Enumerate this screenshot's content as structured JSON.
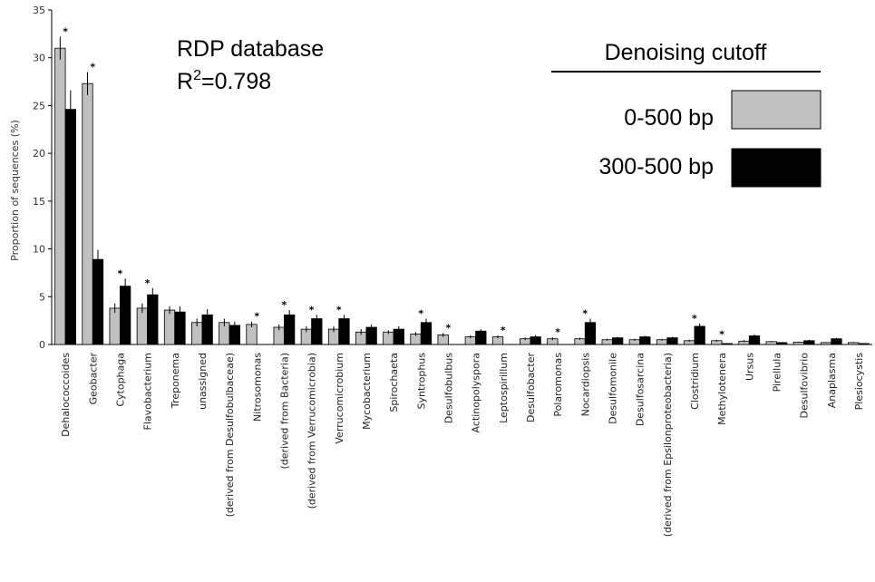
{
  "chart_data": {
    "type": "bar",
    "ylabel": "Proportion of sequences (%)",
    "ylim": [
      0,
      35
    ],
    "yticks": [
      0,
      5,
      10,
      15,
      20,
      25,
      30,
      35
    ],
    "annotation": {
      "line1": "RDP database",
      "line2_prefix": "R",
      "line2_sup": "2",
      "line2_suffix": "=0.798"
    },
    "legend": {
      "title": "Denoising cutoff",
      "placement": "top-right"
    },
    "significance_marker": "*",
    "categories": [
      "Dehalococcoides",
      "Geobacter",
      "Cytophaga",
      "Flavobacterium",
      "Treponema",
      "unassigned",
      "(derived from Desulfobulbaceae)",
      "Nitrosomonas",
      "(derived from Bacteria)",
      "(derived from Verrucomicrobia)",
      "Verrucomicrobium",
      "Mycobacterium",
      "Spirochaeta",
      "Syntrophus",
      "Desulfobulbus",
      "Actinopolyspora",
      "Leptospirillum",
      "Desulfobacter",
      "Polaromonas",
      "Nocardiopsis",
      "Desulfomonile",
      "Desulfosarcina",
      "(derived from Epsilonproteobacteria)",
      "Clostridium",
      "Methylotenera",
      "Ursus",
      "Pirellula",
      "Desulfovibrio",
      "Anaplasma",
      "Plesiocystis"
    ],
    "significant": [
      true,
      true,
      true,
      true,
      false,
      false,
      false,
      true,
      true,
      true,
      true,
      false,
      false,
      true,
      true,
      false,
      true,
      false,
      true,
      true,
      false,
      false,
      false,
      true,
      true,
      false,
      false,
      false,
      false,
      false
    ],
    "series": [
      {
        "name": "0-500 bp",
        "color": "#c0c0c0",
        "values": [
          31.0,
          27.3,
          3.8,
          3.8,
          3.6,
          2.3,
          2.3,
          2.1,
          1.8,
          1.6,
          1.6,
          1.3,
          1.3,
          1.1,
          1.0,
          0.8,
          0.8,
          0.6,
          0.6,
          0.6,
          0.5,
          0.5,
          0.5,
          0.4,
          0.4,
          0.35,
          0.3,
          0.25,
          0.2,
          0.2
        ],
        "errors": [
          1.2,
          1.2,
          0.5,
          0.5,
          0.4,
          0.4,
          0.4,
          0.3,
          0.3,
          0.3,
          0.3,
          0.3,
          0.2,
          0.2,
          0.2,
          0.15,
          0.15,
          0.15,
          0.15,
          0.1,
          0.1,
          0.1,
          0.1,
          0.1,
          0.1,
          0.1,
          0.05,
          0.05,
          0.05,
          0.05
        ]
      },
      {
        "name": "300-500 bp",
        "color": "#000000",
        "values": [
          24.6,
          8.9,
          6.1,
          5.2,
          3.4,
          3.1,
          2.0,
          0.0,
          3.1,
          2.7,
          2.7,
          1.8,
          1.6,
          2.3,
          0.0,
          1.4,
          0.0,
          0.8,
          0.0,
          2.3,
          0.7,
          0.8,
          0.7,
          1.9,
          0.1,
          0.9,
          0.2,
          0.4,
          0.6,
          0.1
        ],
        "errors": [
          2.0,
          1.0,
          0.8,
          0.7,
          0.6,
          0.6,
          0.4,
          0.0,
          0.5,
          0.4,
          0.4,
          0.3,
          0.3,
          0.4,
          0.0,
          0.2,
          0.0,
          0.2,
          0.0,
          0.4,
          0.1,
          0.1,
          0.1,
          0.3,
          0.05,
          0.15,
          0.05,
          0.1,
          0.1,
          0.05
        ]
      }
    ]
  }
}
